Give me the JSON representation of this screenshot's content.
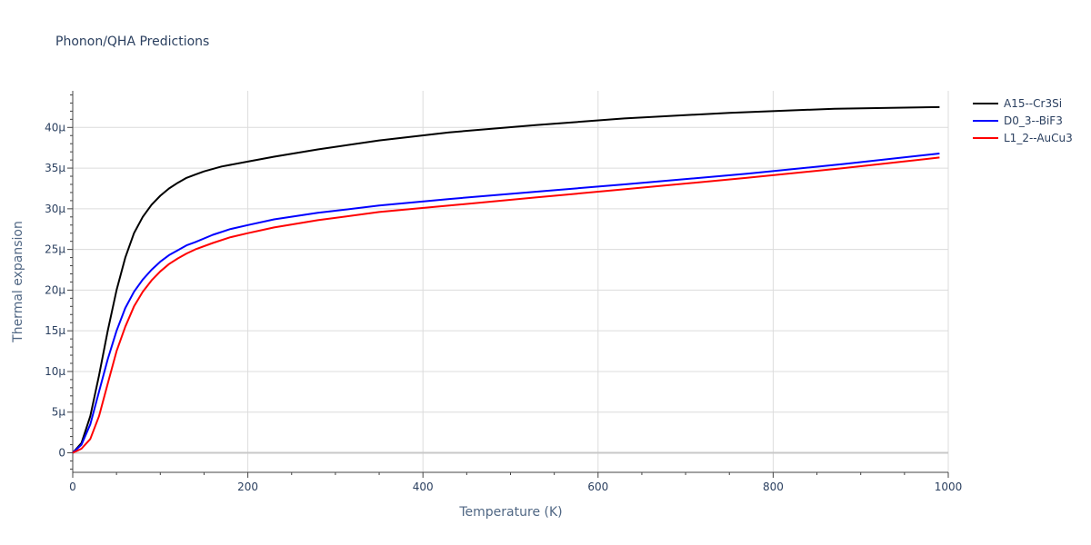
{
  "chart_data": {
    "type": "line",
    "title": "Phonon/QHA Predictions",
    "xlabel": "Temperature (K)",
    "ylabel": "Thermal expansion",
    "xlim": [
      0,
      1000
    ],
    "ylim": [
      -2.4,
      44.5
    ],
    "x_ticks": [
      0,
      200,
      400,
      600,
      800,
      1000
    ],
    "x_tick_labels": [
      "0",
      "200",
      "400",
      "600",
      "800",
      "1000"
    ],
    "y_ticks": [
      0,
      5,
      10,
      15,
      20,
      25,
      30,
      35,
      40
    ],
    "y_tick_labels": [
      "0",
      "5μ",
      "10μ",
      "15μ",
      "20μ",
      "25μ",
      "30μ",
      "35μ",
      "40μ"
    ],
    "y_unit": "μ (×1e-6)",
    "grid": true,
    "legend_position": "top-right",
    "series": [
      {
        "name": "A15--Cr3Si",
        "color": "#000000",
        "x": [
          0,
          10,
          20,
          30,
          40,
          50,
          60,
          70,
          80,
          90,
          100,
          110,
          120,
          130,
          140,
          150,
          170,
          200,
          230,
          280,
          350,
          430,
          530,
          630,
          750,
          870,
          990
        ],
        "y": [
          0,
          1.2,
          4.5,
          9.5,
          15.0,
          20.0,
          24.0,
          27.0,
          29.0,
          30.5,
          31.6,
          32.5,
          33.2,
          33.8,
          34.2,
          34.6,
          35.2,
          35.8,
          36.4,
          37.3,
          38.4,
          39.4,
          40.3,
          41.1,
          41.8,
          42.3,
          42.5
        ]
      },
      {
        "name": "D0_3--BiF3",
        "color": "#0000ff",
        "x": [
          0,
          10,
          20,
          30,
          40,
          50,
          60,
          70,
          80,
          90,
          100,
          110,
          120,
          130,
          140,
          160,
          180,
          200,
          230,
          280,
          350,
          430,
          530,
          630,
          770,
          880,
          990
        ],
        "y": [
          0,
          1.0,
          3.5,
          7.5,
          11.5,
          15.0,
          17.8,
          19.8,
          21.3,
          22.5,
          23.5,
          24.3,
          24.9,
          25.5,
          25.9,
          26.8,
          27.5,
          28.0,
          28.7,
          29.5,
          30.4,
          31.2,
          32.1,
          33.0,
          34.3,
          35.5,
          36.8
        ]
      },
      {
        "name": "L1_2--AuCu3",
        "color": "#ff0000",
        "x": [
          0,
          10,
          20,
          30,
          40,
          50,
          60,
          70,
          80,
          90,
          100,
          110,
          120,
          130,
          140,
          160,
          180,
          200,
          230,
          280,
          350,
          430,
          530,
          630,
          770,
          880,
          990
        ],
        "y": [
          0,
          0.5,
          1.7,
          4.5,
          8.5,
          12.5,
          15.5,
          18.0,
          19.8,
          21.2,
          22.3,
          23.2,
          23.9,
          24.5,
          25.0,
          25.8,
          26.5,
          27.0,
          27.7,
          28.6,
          29.6,
          30.4,
          31.4,
          32.4,
          33.8,
          35.0,
          36.3
        ]
      }
    ]
  }
}
